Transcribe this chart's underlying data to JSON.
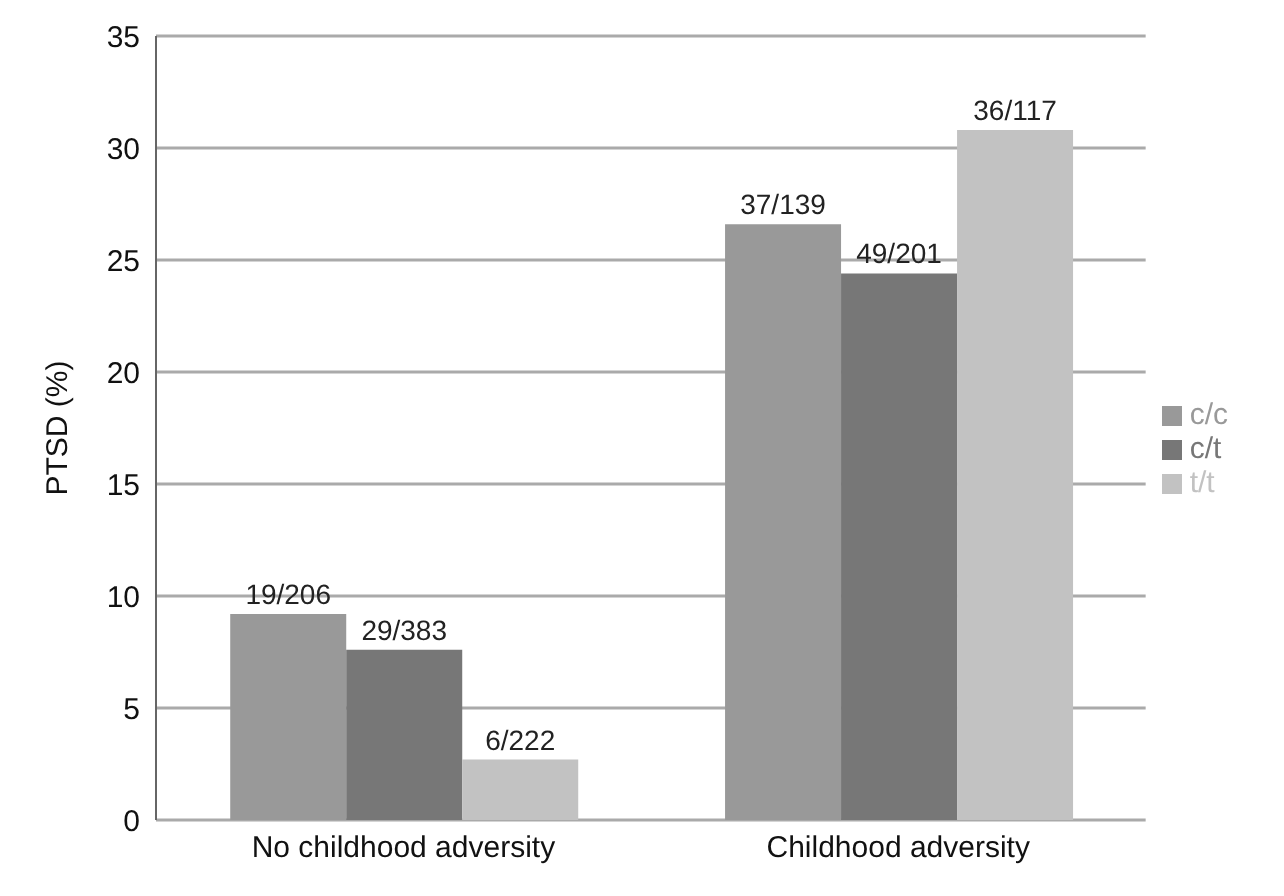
{
  "chart_data": {
    "type": "bar",
    "ylabel": "PTSD (%)",
    "categories": [
      "No childhood adversity",
      "Childhood adversity"
    ],
    "series": [
      {
        "name": "c/c",
        "color": "#999999",
        "values": [
          9.2,
          26.6
        ],
        "value_labels": [
          "19/206",
          "37/139"
        ]
      },
      {
        "name": "c/t",
        "color": "#777777",
        "values": [
          7.6,
          24.4
        ],
        "value_labels": [
          "29/383",
          "49/201"
        ]
      },
      {
        "name": "t/t",
        "color": "#c2c2c2",
        "values": [
          2.7,
          30.8
        ],
        "value_labels": [
          "6/222",
          "36/117"
        ]
      }
    ],
    "ylim": [
      0,
      35
    ],
    "yticks": [
      0,
      5,
      10,
      15,
      20,
      25,
      30,
      35
    ],
    "grid": "y",
    "legend": "right"
  }
}
